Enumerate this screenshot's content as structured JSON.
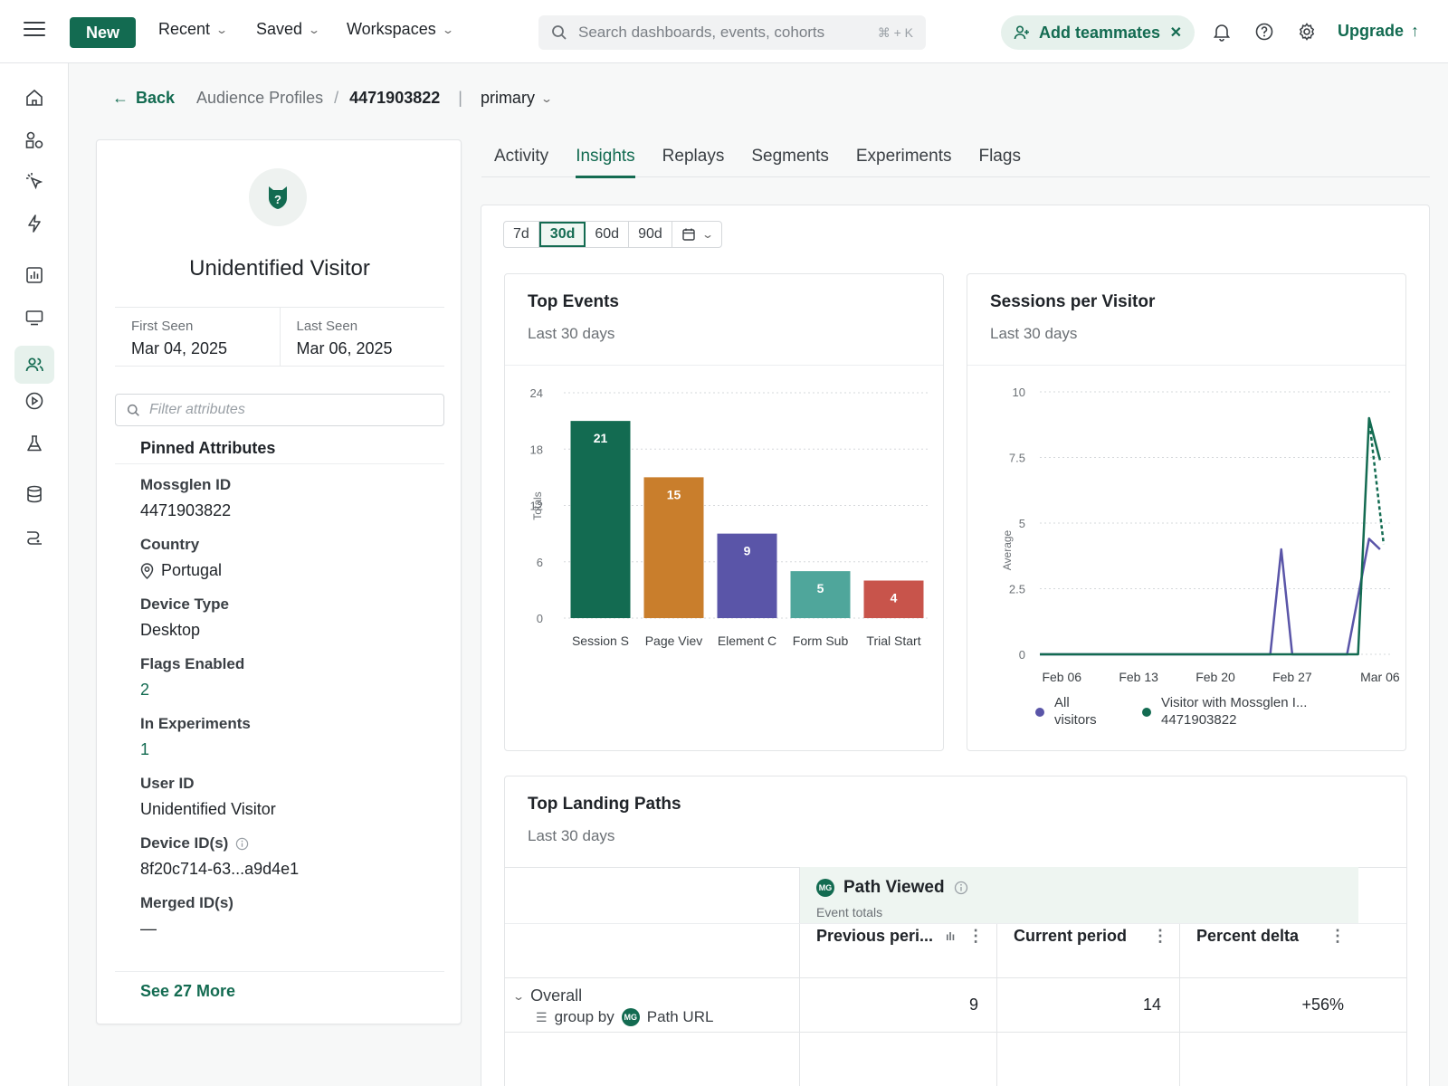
{
  "topbar": {
    "new_label": "New",
    "nav": [
      "Recent",
      "Saved",
      "Workspaces"
    ],
    "search_placeholder": "Search dashboards, events, cohorts",
    "search_shortcut": "⌘ + K",
    "add_teammates": "Add teammates",
    "upgrade": "Upgrade"
  },
  "breadcrumb": {
    "back": "Back",
    "parent": "Audience Profiles",
    "sep": "/",
    "current": "4471903822",
    "divider": "|",
    "env": "primary"
  },
  "profile": {
    "name": "Unidentified Visitor",
    "first_seen_label": "First Seen",
    "first_seen": "Mar 04, 2025",
    "last_seen_label": "Last Seen",
    "last_seen": "Mar 06, 2025",
    "filter_placeholder": "Filter attributes",
    "pinned_title": "Pinned Attributes",
    "attributes": [
      {
        "key": "Mossglen ID",
        "value": "4471903822"
      },
      {
        "key": "Country",
        "value": "Portugal"
      },
      {
        "key": "Device Type",
        "value": "Desktop"
      },
      {
        "key": "Flags Enabled",
        "value": "2"
      },
      {
        "key": "In Experiments",
        "value": "1"
      },
      {
        "key": "User ID",
        "value": "Unidentified Visitor"
      },
      {
        "key": "Device ID(s)",
        "value": "8f20c714-63...a9d4e1"
      },
      {
        "key": "Merged ID(s)",
        "value": "—"
      }
    ],
    "see_more": "See 27 More"
  },
  "tabs": [
    "Activity",
    "Insights",
    "Replays",
    "Segments",
    "Experiments",
    "Flags"
  ],
  "active_tab": "Insights",
  "range": {
    "options": [
      "7d",
      "30d",
      "60d",
      "90d"
    ],
    "selected": "30d"
  },
  "top_events": {
    "title": "Top Events",
    "subtitle": "Last 30 days"
  },
  "sessions": {
    "title": "Sessions per Visitor",
    "subtitle": "Last 30 days"
  },
  "landing": {
    "title": "Top Landing Paths",
    "subtitle": "Last 30 days",
    "badge": "MG",
    "metric": "Path Viewed",
    "metric_sub": "Event totals",
    "columns": [
      "Previous peri...",
      "Current period",
      "Percent delta"
    ],
    "row_label": "Overall",
    "group_by_label": "group by",
    "group_by_value": "Path URL",
    "row_values": [
      "9",
      "14",
      "+56%"
    ]
  },
  "colors": {
    "brand": "#136b51",
    "bar_colors": [
      "#136b51",
      "#c97e2c",
      "#5a55a8",
      "#4fa69b",
      "#c8544b"
    ],
    "line_all": "#5a55a8",
    "line_visitor": "#136b51"
  },
  "chart_data": [
    {
      "type": "bar",
      "title": "Top Events",
      "ylabel": "Totals",
      "categories": [
        "Session S",
        "Page Viev",
        "Element C",
        "Form Sub",
        "Trial Start"
      ],
      "values": [
        21,
        15,
        9,
        5,
        4
      ],
      "ylim": [
        0,
        24
      ],
      "yticks": [
        0,
        6,
        12,
        18,
        24
      ],
      "grid": true
    },
    {
      "type": "line",
      "title": "Sessions per Visitor",
      "ylabel": "Average",
      "x": [
        "Feb 06",
        "Feb 13",
        "Feb 20",
        "Feb 27",
        "Mar 06"
      ],
      "ylim": [
        0,
        10
      ],
      "yticks": [
        0,
        2.5,
        5,
        7.5,
        10
      ],
      "series": [
        {
          "name": "All visitors",
          "points": [
            [
              "Feb 04",
              0
            ],
            [
              "Feb 25",
              0
            ],
            [
              "Feb 26",
              4
            ],
            [
              "Feb 27",
              0
            ],
            [
              "Mar 03",
              0
            ],
            [
              "Mar 05",
              4.4
            ],
            [
              "Mar 06",
              4
            ]
          ]
        },
        {
          "name": "Visitor with Mossglen I... 4471903822",
          "points": [
            [
              "Feb 04",
              0
            ],
            [
              "Mar 04",
              0
            ],
            [
              "Mar 05",
              9
            ],
            [
              "Mar 06",
              7.4
            ]
          ]
        }
      ],
      "legend": "bottom"
    }
  ]
}
